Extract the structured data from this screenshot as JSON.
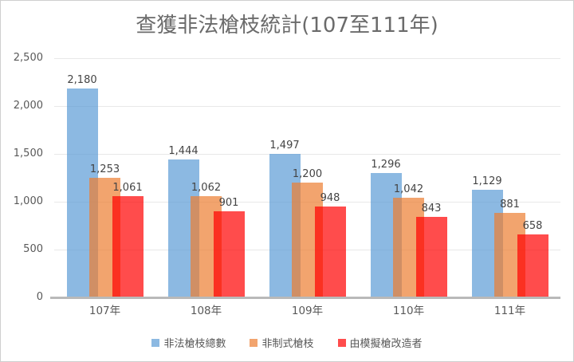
{
  "chart_data": {
    "type": "bar",
    "title": "查獲非法槍枝統計(107至111年)",
    "categories": [
      "107年",
      "108年",
      "109年",
      "110年",
      "111年"
    ],
    "series": [
      {
        "key": "total-illegal-guns",
        "name": "非法槍枝總數",
        "color": "#5B9BD5",
        "values": [
          2180,
          1444,
          1497,
          1296,
          1129
        ],
        "value_labels": [
          "2,180",
          "1,444",
          "1,497",
          "1,296",
          "1,129"
        ]
      },
      {
        "key": "non-standard-guns",
        "name": "非制式槍枝",
        "color": "#ED7D31",
        "values": [
          1253,
          1062,
          1200,
          1042,
          881
        ],
        "value_labels": [
          "1,253",
          "1,062",
          "1,200",
          "1,042",
          "881"
        ]
      },
      {
        "key": "modified-from-replica",
        "name": "由模擬槍改造者",
        "color": "#FF0000",
        "values": [
          1061,
          901,
          948,
          843,
          658
        ],
        "value_labels": [
          "1,061",
          "901",
          "948",
          "843",
          "658"
        ]
      }
    ],
    "y_ticks": [
      "2,500",
      "2,000",
      "1,500",
      "1,000",
      "500",
      "0"
    ],
    "ylim": [
      0,
      2500
    ],
    "grid": true,
    "legend_position": "bottom",
    "colors": {
      "title_text": "#6b6b6b",
      "axis_text": "#595959",
      "data_label_text": "#444444",
      "gridline": "#e8e8e8",
      "axis_line": "#b9b9b9"
    }
  }
}
